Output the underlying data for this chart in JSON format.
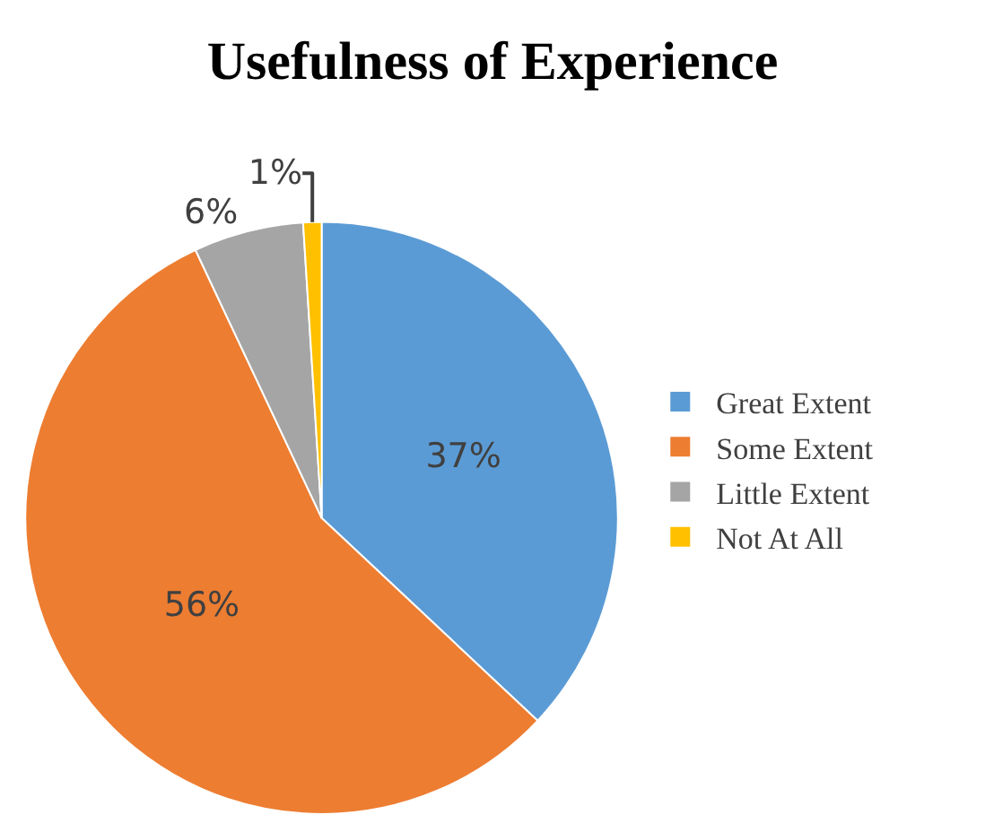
{
  "chart_data": {
    "type": "pie",
    "title": "Usefulness of Experience",
    "categories": [
      "Great Extent",
      "Some Extent",
      "Little Extent",
      "Not At All"
    ],
    "values": [
      37,
      56,
      6,
      1
    ],
    "colors": [
      "#5b9bd5",
      "#ed7d31",
      "#a5a5a5",
      "#ffc000"
    ],
    "value_labels": [
      "37%",
      "56%",
      "6%",
      "1%"
    ],
    "legend": "right"
  }
}
